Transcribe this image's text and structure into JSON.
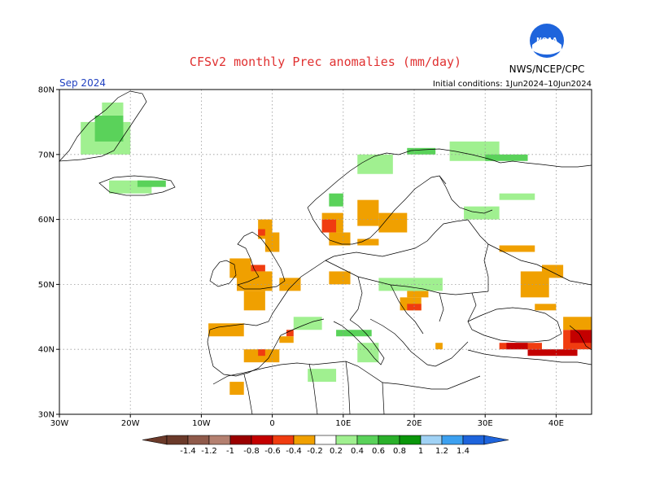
{
  "title": "CFSv2 monthly Prec anomalies (mm/day)",
  "month": "Sep 2024",
  "initial_conditions": "Initial conditions: 1Jun2024–10Jun2024",
  "org": "NWS/NCEP/CPC",
  "logo_text": "NOAA",
  "lat_labels": [
    "80N",
    "70N",
    "60N",
    "50N",
    "40N",
    "30N"
  ],
  "lon_labels": [
    "30W",
    "20W",
    "10W",
    "0",
    "10E",
    "20E",
    "30E",
    "40E"
  ],
  "colorbar": {
    "labels": [
      "-1.4",
      "-1.2",
      "-1",
      "-0.8",
      "-0.6",
      "-0.4",
      "-0.2",
      "0.2",
      "0.4",
      "0.6",
      "0.8",
      "1",
      "1.2",
      "1.4"
    ],
    "colors": [
      "#6b3a2a",
      "#8f5a4a",
      "#b48070",
      "#9a0000",
      "#c40000",
      "#f03c10",
      "#f0a000",
      "#ffffff",
      "#a0f090",
      "#5ad25a",
      "#2ab02a",
      "#0a960a",
      "#a0d2f5",
      "#3ca0f0",
      "#1e64dc"
    ]
  },
  "map_data": {
    "type": "heatmap",
    "lon_range": [
      -30,
      45
    ],
    "lat_range": [
      30,
      80
    ],
    "cells": [
      {
        "lon": [
          -27,
          -20
        ],
        "lat": [
          70,
          75
        ],
        "color": "#a0f090"
      },
      {
        "lon": [
          -25,
          -21
        ],
        "lat": [
          72,
          76
        ],
        "color": "#5ad25a"
      },
      {
        "lon": [
          -24,
          -21
        ],
        "lat": [
          76,
          78
        ],
        "color": "#a0f090"
      },
      {
        "lon": [
          -23,
          -17
        ],
        "lat": [
          64,
          66
        ],
        "color": "#a0f090"
      },
      {
        "lon": [
          -19,
          -15
        ],
        "lat": [
          65,
          66
        ],
        "color": "#5ad25a"
      },
      {
        "lon": [
          -2,
          0
        ],
        "lat": [
          57,
          60
        ],
        "color": "#f0a000"
      },
      {
        "lon": [
          -2,
          -1
        ],
        "lat": [
          57.5,
          58.5
        ],
        "color": "#f03c10"
      },
      {
        "lon": [
          -1,
          1
        ],
        "lat": [
          55,
          58
        ],
        "color": "#f0a000"
      },
      {
        "lon": [
          -6,
          -3
        ],
        "lat": [
          51,
          54
        ],
        "color": "#f0a000"
      },
      {
        "lon": [
          -3,
          -1
        ],
        "lat": [
          52,
          53
        ],
        "color": "#f03c10"
      },
      {
        "lon": [
          -5,
          0
        ],
        "lat": [
          49,
          52
        ],
        "color": "#f0a000"
      },
      {
        "lon": [
          1,
          4
        ],
        "lat": [
          49,
          51
        ],
        "color": "#f0a000"
      },
      {
        "lon": [
          8,
          11
        ],
        "lat": [
          50,
          52
        ],
        "color": "#f0a000"
      },
      {
        "lon": [
          -4,
          -1
        ],
        "lat": [
          46,
          49
        ],
        "color": "#f0a000"
      },
      {
        "lon": [
          -9,
          -4
        ],
        "lat": [
          42,
          44
        ],
        "color": "#f0a000"
      },
      {
        "lon": [
          2,
          3
        ],
        "lat": [
          42,
          43
        ],
        "color": "#f03c10"
      },
      {
        "lon": [
          1,
          3
        ],
        "lat": [
          41,
          42
        ],
        "color": "#f0a000"
      },
      {
        "lon": [
          -4,
          1
        ],
        "lat": [
          38,
          40
        ],
        "color": "#f0a000"
      },
      {
        "lon": [
          -2,
          -1
        ],
        "lat": [
          39,
          40
        ],
        "color": "#f03c10"
      },
      {
        "lon": [
          -6,
          -4
        ],
        "lat": [
          33,
          35
        ],
        "color": "#f0a000"
      },
      {
        "lon": [
          7,
          10
        ],
        "lat": [
          58,
          61
        ],
        "color": "#f0a000"
      },
      {
        "lon": [
          7,
          9
        ],
        "lat": [
          58,
          60
        ],
        "color": "#f03c10"
      },
      {
        "lon": [
          12,
          15
        ],
        "lat": [
          59,
          63
        ],
        "color": "#f0a000"
      },
      {
        "lon": [
          15,
          19
        ],
        "lat": [
          58,
          61
        ],
        "color": "#f0a000"
      },
      {
        "lon": [
          8,
          11
        ],
        "lat": [
          56,
          58
        ],
        "color": "#f0a000"
      },
      {
        "lon": [
          12,
          15
        ],
        "lat": [
          56,
          57
        ],
        "color": "#f0a000"
      },
      {
        "lon": [
          18,
          21
        ],
        "lat": [
          46,
          48
        ],
        "color": "#f0a000"
      },
      {
        "lon": [
          19,
          21
        ],
        "lat": [
          46,
          47
        ],
        "color": "#f03c10"
      },
      {
        "lon": [
          19,
          22
        ],
        "lat": [
          48,
          49
        ],
        "color": "#f0a000"
      },
      {
        "lon": [
          32,
          37
        ],
        "lat": [
          55,
          56
        ],
        "color": "#f0a000"
      },
      {
        "lon": [
          35,
          39
        ],
        "lat": [
          48,
          52
        ],
        "color": "#f0a000"
      },
      {
        "lon": [
          38,
          41
        ],
        "lat": [
          51,
          53
        ],
        "color": "#f0a000"
      },
      {
        "lon": [
          37,
          40
        ],
        "lat": [
          46,
          47
        ],
        "color": "#f0a000"
      },
      {
        "lon": [
          32,
          38
        ],
        "lat": [
          40,
          41
        ],
        "color": "#f03c10"
      },
      {
        "lon": [
          33,
          36
        ],
        "lat": [
          40,
          41
        ],
        "color": "#c40000"
      },
      {
        "lon": [
          36,
          43
        ],
        "lat": [
          39,
          40
        ],
        "color": "#c40000"
      },
      {
        "lon": [
          41,
          45
        ],
        "lat": [
          40,
          43
        ],
        "color": "#f03c10"
      },
      {
        "lon": [
          42,
          45
        ],
        "lat": [
          41,
          43
        ],
        "color": "#c40000"
      },
      {
        "lon": [
          41,
          45
        ],
        "lat": [
          43,
          45
        ],
        "color": "#f0a000"
      },
      {
        "lon": [
          23,
          24
        ],
        "lat": [
          40,
          41
        ],
        "color": "#f0a000"
      },
      {
        "lon": [
          8,
          10
        ],
        "lat": [
          62,
          64
        ],
        "color": "#5ad25a"
      },
      {
        "lon": [
          12,
          17
        ],
        "lat": [
          67,
          70
        ],
        "color": "#a0f090"
      },
      {
        "lon": [
          19,
          23
        ],
        "lat": [
          70,
          71
        ],
        "color": "#5ad25a"
      },
      {
        "lon": [
          25,
          32
        ],
        "lat": [
          69,
          72
        ],
        "color": "#a0f090"
      },
      {
        "lon": [
          30,
          36
        ],
        "lat": [
          69,
          70
        ],
        "color": "#5ad25a"
      },
      {
        "lon": [
          27,
          32
        ],
        "lat": [
          60,
          62
        ],
        "color": "#a0f090"
      },
      {
        "lon": [
          32,
          37
        ],
        "lat": [
          63,
          64
        ],
        "color": "#a0f090"
      },
      {
        "lon": [
          15,
          24
        ],
        "lat": [
          49,
          51
        ],
        "color": "#a0f090"
      },
      {
        "lon": [
          9,
          14
        ],
        "lat": [
          42,
          43
        ],
        "color": "#5ad25a"
      },
      {
        "lon": [
          12,
          15
        ],
        "lat": [
          38,
          41
        ],
        "color": "#a0f090"
      },
      {
        "lon": [
          5,
          9
        ],
        "lat": [
          35,
          37
        ],
        "color": "#a0f090"
      },
      {
        "lon": [
          3,
          7
        ],
        "lat": [
          43,
          45
        ],
        "color": "#a0f090"
      }
    ]
  }
}
